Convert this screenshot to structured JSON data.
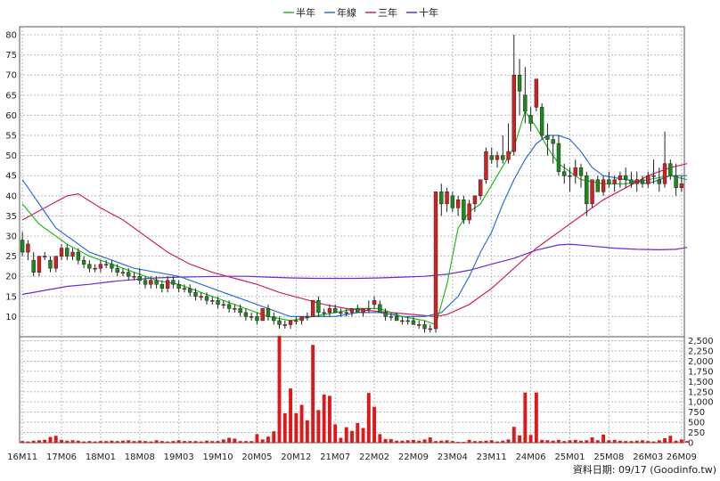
{
  "chart_data": {
    "type": "candlestick-with-volume",
    "legend": [
      {
        "name": "半年",
        "color": "#22bb22"
      },
      {
        "name": "年線",
        "color": "#2f6fd6"
      },
      {
        "name": "三年",
        "color": "#cc2266"
      },
      {
        "name": "十年",
        "color": "#6a2ad0"
      }
    ],
    "price_axis": {
      "min": 5,
      "max": 82,
      "ticks": [
        10,
        15,
        20,
        25,
        30,
        35,
        40,
        45,
        50,
        55,
        60,
        65,
        70,
        75,
        80
      ]
    },
    "volume_axis": {
      "min": 0,
      "max": 2600,
      "ticks": [
        0,
        250,
        500,
        750,
        1000,
        1250,
        1500,
        1750,
        2000,
        2250,
        2500
      ],
      "tick_labels": [
        "0",
        "250",
        "500",
        "750",
        "1,000",
        "1,250",
        "1,500",
        "1,750",
        "2,000",
        "2,250",
        "2,500"
      ]
    },
    "x_labels": [
      "16M11",
      "17M06",
      "18M01",
      "18M08",
      "19M03",
      "19M10",
      "20M05",
      "20M12",
      "21M07",
      "22M02",
      "22M09",
      "23M04",
      "23M11",
      "24M06",
      "25M01",
      "25M08",
      "26M03",
      "26M09"
    ],
    "x_label_index": [
      0,
      7,
      14,
      21,
      28,
      35,
      42,
      49,
      56,
      63,
      70,
      77,
      84,
      91,
      98,
      105,
      112,
      118
    ],
    "candles": [
      [
        29,
        31,
        25,
        26
      ],
      [
        26,
        29,
        24,
        28
      ],
      [
        24,
        26,
        20,
        21
      ],
      [
        21,
        25,
        20,
        25
      ],
      [
        25,
        26,
        24,
        25
      ],
      [
        24,
        25,
        21,
        22
      ],
      [
        22,
        25,
        21,
        25
      ],
      [
        25,
        28,
        24,
        27
      ],
      [
        27,
        28,
        24,
        25
      ],
      [
        25,
        27,
        24,
        26
      ],
      [
        26,
        27,
        23,
        24
      ],
      [
        24,
        25,
        22,
        23
      ],
      [
        23,
        24,
        21,
        22
      ],
      [
        22,
        23,
        21,
        22
      ],
      [
        22,
        24,
        21,
        23
      ],
      [
        23,
        24,
        22,
        23
      ],
      [
        23,
        24,
        21,
        22
      ],
      [
        22,
        23,
        20,
        21
      ],
      [
        21,
        22,
        20,
        21
      ],
      [
        21,
        22,
        19,
        20
      ],
      [
        20,
        21,
        19,
        20
      ],
      [
        20,
        22,
        18,
        19
      ],
      [
        19,
        20,
        17,
        18
      ],
      [
        18,
        20,
        17,
        19
      ],
      [
        19,
        20,
        17,
        18
      ],
      [
        18,
        19,
        16,
        17
      ],
      [
        17,
        20,
        16,
        19
      ],
      [
        19,
        20,
        17,
        18
      ],
      [
        18,
        19,
        16,
        17
      ],
      [
        17,
        18,
        16,
        17
      ],
      [
        17,
        18,
        15,
        16
      ],
      [
        16,
        17,
        14,
        15
      ],
      [
        15,
        16,
        14,
        15
      ],
      [
        15,
        16,
        13,
        14
      ],
      [
        14,
        15,
        13,
        14
      ],
      [
        14,
        15,
        12,
        13
      ],
      [
        13,
        14,
        12,
        13
      ],
      [
        13,
        14,
        11,
        12
      ],
      [
        12,
        13,
        11,
        12
      ],
      [
        12,
        13,
        10,
        11
      ],
      [
        11,
        12,
        9,
        10
      ],
      [
        10,
        11,
        9,
        10
      ],
      [
        10,
        11,
        8,
        9
      ],
      [
        9,
        12,
        9,
        12
      ],
      [
        12,
        13,
        9,
        10
      ],
      [
        10,
        11,
        8,
        9
      ],
      [
        9,
        10,
        7,
        8
      ],
      [
        8,
        9,
        7,
        8
      ],
      [
        8,
        9,
        7,
        9
      ],
      [
        9,
        10,
        8,
        9
      ],
      [
        9,
        10,
        8,
        10
      ],
      [
        10,
        11,
        9,
        10
      ],
      [
        10,
        14,
        10,
        14
      ],
      [
        14,
        15,
        10,
        11
      ],
      [
        11,
        12,
        10,
        11
      ],
      [
        11,
        13,
        10,
        12
      ],
      [
        12,
        13,
        11,
        11
      ],
      [
        11,
        12,
        10,
        11
      ],
      [
        11,
        12,
        10,
        11
      ],
      [
        11,
        12,
        10,
        12
      ],
      [
        12,
        13,
        11,
        11
      ],
      [
        11,
        12,
        10,
        12
      ],
      [
        12,
        14,
        11,
        12
      ],
      [
        13,
        15,
        12,
        14
      ],
      [
        13,
        14,
        11,
        11
      ],
      [
        11,
        12,
        9,
        10
      ],
      [
        10,
        11,
        9,
        10
      ],
      [
        10,
        11,
        9,
        9
      ],
      [
        9,
        10,
        8,
        9
      ],
      [
        9,
        10,
        8,
        9
      ],
      [
        9,
        10,
        8,
        8
      ],
      [
        8,
        9,
        7,
        8
      ],
      [
        8,
        9,
        6,
        7
      ],
      [
        7,
        8,
        6,
        7
      ],
      [
        7,
        41,
        6,
        41
      ],
      [
        41,
        43,
        35,
        38
      ],
      [
        38,
        42,
        36,
        41
      ],
      [
        40,
        41,
        36,
        37
      ],
      [
        37,
        40,
        35,
        39
      ],
      [
        39,
        40,
        33,
        34
      ],
      [
        34,
        39,
        33,
        38
      ],
      [
        38,
        40,
        36,
        40
      ],
      [
        40,
        44,
        39,
        44
      ],
      [
        44,
        52,
        43,
        51
      ],
      [
        50,
        52,
        48,
        49
      ],
      [
        49,
        51,
        47,
        50
      ],
      [
        50,
        55,
        48,
        49
      ],
      [
        49,
        58,
        48,
        51
      ],
      [
        51,
        80,
        50,
        70
      ],
      [
        70,
        74,
        60,
        66
      ],
      [
        65,
        72,
        58,
        61
      ],
      [
        60,
        62,
        56,
        58
      ],
      [
        62,
        69,
        61,
        69
      ],
      [
        62,
        63,
        54,
        55
      ],
      [
        55,
        58,
        50,
        54
      ],
      [
        54,
        55,
        48,
        53
      ],
      [
        53,
        55,
        45,
        46
      ],
      [
        46,
        48,
        43,
        45
      ],
      [
        45,
        47,
        41,
        45
      ],
      [
        45,
        49,
        43,
        47
      ],
      [
        47,
        48,
        42,
        45
      ],
      [
        45,
        46,
        35,
        38
      ],
      [
        38,
        44,
        37,
        44
      ],
      [
        44,
        45,
        41,
        41
      ],
      [
        41,
        45,
        40,
        44
      ],
      [
        44,
        46,
        42,
        43
      ],
      [
        43,
        45,
        41,
        44
      ],
      [
        44,
        46,
        42,
        45
      ],
      [
        45,
        47,
        42,
        44
      ],
      [
        44,
        46,
        42,
        43
      ],
      [
        43,
        46,
        41,
        44
      ],
      [
        44,
        45,
        42,
        43
      ],
      [
        43,
        46,
        42,
        45
      ],
      [
        45,
        49,
        43,
        45
      ],
      [
        44,
        47,
        41,
        43
      ],
      [
        43,
        56,
        42,
        48
      ],
      [
        48,
        49,
        44,
        45
      ],
      [
        45,
        48,
        40,
        42
      ],
      [
        42,
        45,
        41,
        43
      ]
    ],
    "volume": [
      40,
      30,
      50,
      60,
      70,
      140,
      170,
      70,
      50,
      60,
      50,
      30,
      40,
      30,
      40,
      40,
      50,
      40,
      50,
      60,
      40,
      50,
      40,
      30,
      60,
      40,
      30,
      40,
      60,
      40,
      40,
      40,
      30,
      50,
      40,
      40,
      80,
      120,
      100,
      40,
      40,
      40,
      210,
      80,
      150,
      280,
      2620,
      720,
      1330,
      720,
      930,
      550,
      2400,
      800,
      1180,
      1150,
      450,
      120,
      380,
      290,
      480,
      360,
      1220,
      880,
      210,
      90,
      90,
      50,
      50,
      60,
      70,
      50,
      80,
      130,
      40,
      50,
      60,
      40,
      20,
      20,
      70,
      40,
      40,
      50,
      60,
      30,
      50,
      80,
      390,
      180,
      1230,
      190,
      1230,
      70,
      60,
      50,
      70,
      40,
      60,
      70,
      50,
      60,
      130,
      60,
      200,
      60,
      70,
      50,
      40,
      40,
      50,
      60,
      40,
      30,
      60,
      110,
      170,
      50,
      80,
      40
    ],
    "ma_halfyear": [
      [
        0,
        38
      ],
      [
        3,
        33
      ],
      [
        8,
        28
      ],
      [
        12,
        25
      ],
      [
        16,
        23
      ],
      [
        20,
        21
      ],
      [
        24,
        19
      ],
      [
        28,
        18
      ],
      [
        32,
        16
      ],
      [
        36,
        14
      ],
      [
        40,
        12
      ],
      [
        44,
        10
      ],
      [
        48,
        9
      ],
      [
        52,
        10
      ],
      [
        56,
        11
      ],
      [
        60,
        12
      ],
      [
        64,
        12
      ],
      [
        68,
        10
      ],
      [
        72,
        9
      ],
      [
        74,
        8
      ],
      [
        76,
        18
      ],
      [
        78,
        32
      ],
      [
        80,
        36
      ],
      [
        82,
        38
      ],
      [
        85,
        45
      ],
      [
        88,
        52
      ],
      [
        90,
        61
      ],
      [
        92,
        57
      ],
      [
        94,
        52
      ],
      [
        96,
        48
      ],
      [
        98,
        46
      ],
      [
        100,
        44
      ],
      [
        104,
        43
      ],
      [
        108,
        43
      ],
      [
        112,
        44
      ],
      [
        116,
        45
      ],
      [
        119,
        44
      ]
    ],
    "ma_year": [
      [
        0,
        44
      ],
      [
        3,
        38
      ],
      [
        6,
        32
      ],
      [
        9,
        29
      ],
      [
        12,
        26
      ],
      [
        16,
        24
      ],
      [
        20,
        22
      ],
      [
        24,
        21
      ],
      [
        28,
        20
      ],
      [
        32,
        18
      ],
      [
        36,
        16
      ],
      [
        40,
        14
      ],
      [
        44,
        12
      ],
      [
        48,
        10
      ],
      [
        52,
        10
      ],
      [
        56,
        10
      ],
      [
        60,
        11
      ],
      [
        64,
        11
      ],
      [
        68,
        10
      ],
      [
        72,
        10
      ],
      [
        75,
        11
      ],
      [
        78,
        15
      ],
      [
        80,
        20
      ],
      [
        82,
        26
      ],
      [
        84,
        31
      ],
      [
        86,
        38
      ],
      [
        88,
        44
      ],
      [
        90,
        49
      ],
      [
        92,
        53
      ],
      [
        94,
        55
      ],
      [
        96,
        55
      ],
      [
        98,
        54
      ],
      [
        100,
        51
      ],
      [
        102,
        47
      ],
      [
        104,
        45
      ],
      [
        108,
        44
      ],
      [
        112,
        43
      ],
      [
        116,
        45
      ],
      [
        119,
        45
      ]
    ],
    "ma_3year": [
      [
        0,
        34
      ],
      [
        4,
        37
      ],
      [
        8,
        40
      ],
      [
        10,
        40.5
      ],
      [
        14,
        37
      ],
      [
        18,
        34
      ],
      [
        22,
        30
      ],
      [
        26,
        26
      ],
      [
        30,
        23
      ],
      [
        34,
        21
      ],
      [
        38,
        19.5
      ],
      [
        42,
        18
      ],
      [
        46,
        16
      ],
      [
        50,
        14.5
      ],
      [
        54,
        13
      ],
      [
        58,
        12
      ],
      [
        62,
        11.5
      ],
      [
        66,
        11
      ],
      [
        70,
        10.5
      ],
      [
        74,
        10
      ],
      [
        76,
        10.5
      ],
      [
        80,
        13
      ],
      [
        84,
        17
      ],
      [
        88,
        22
      ],
      [
        92,
        27
      ],
      [
        96,
        31
      ],
      [
        100,
        35
      ],
      [
        104,
        39
      ],
      [
        108,
        42
      ],
      [
        112,
        45
      ],
      [
        116,
        47
      ],
      [
        119,
        48
      ]
    ],
    "ma_10year": [
      [
        0,
        15.5
      ],
      [
        4,
        16.5
      ],
      [
        8,
        17.5
      ],
      [
        12,
        18
      ],
      [
        16,
        18.7
      ],
      [
        20,
        19.2
      ],
      [
        24,
        19.6
      ],
      [
        28,
        19.8
      ],
      [
        32,
        19.9
      ],
      [
        36,
        20
      ],
      [
        40,
        20
      ],
      [
        44,
        19.8
      ],
      [
        48,
        19.6
      ],
      [
        52,
        19.5
      ],
      [
        56,
        19.5
      ],
      [
        60,
        19.5
      ],
      [
        64,
        19.6
      ],
      [
        68,
        19.8
      ],
      [
        72,
        20
      ],
      [
        76,
        20.5
      ],
      [
        80,
        21.5
      ],
      [
        84,
        23
      ],
      [
        88,
        24.5
      ],
      [
        92,
        26.5
      ],
      [
        96,
        27.8
      ],
      [
        98,
        28
      ],
      [
        102,
        27.5
      ],
      [
        106,
        27
      ],
      [
        110,
        26.7
      ],
      [
        114,
        26.6
      ],
      [
        117,
        26.7
      ],
      [
        119,
        27.2
      ]
    ]
  },
  "source_text": "資料日期: 09/17  (Goodinfo.tw)",
  "colors": {
    "up": "#d62020",
    "down": "#1a8a1a",
    "volume": "#e01818",
    "grid": "#b8b8b8",
    "frame": "#555555"
  }
}
